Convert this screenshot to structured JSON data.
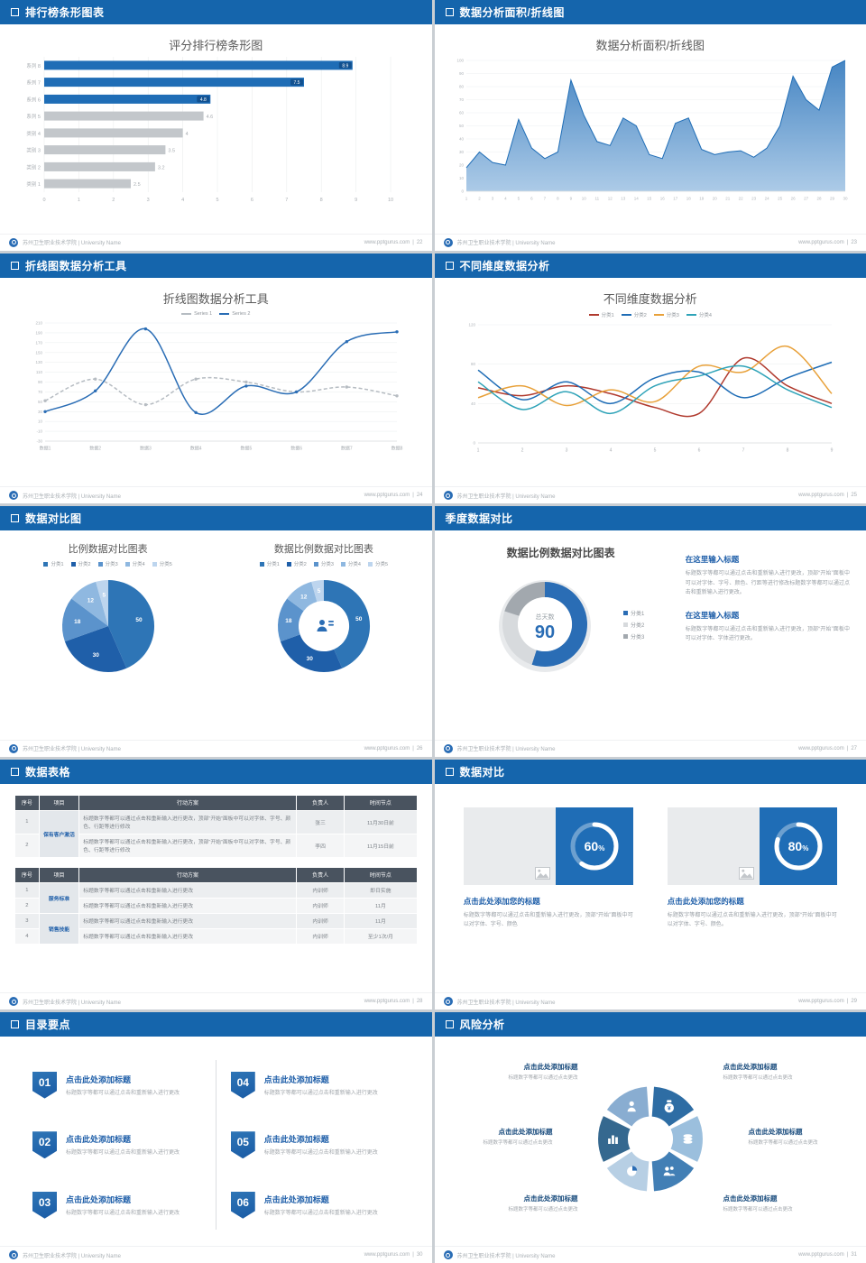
{
  "footer": {
    "left": "苏州卫生职业技术学院 | University Name",
    "site": "www.pptgurus.com",
    "sep": "|"
  },
  "slides": [
    {
      "header": "排行榜条形图表",
      "page": "22",
      "chart": {
        "type": "bar",
        "orientation": "horizontal",
        "title": "评分排行榜条形图",
        "categories": [
          "系列 8",
          "系列 7",
          "系列 6",
          "系列 5",
          "类别 4",
          "类别 3",
          "类别 2",
          "类别 1"
        ],
        "values": [
          8.9,
          7.5,
          4.8,
          4.6,
          4.0,
          3.5,
          3.2,
          2.5
        ],
        "labels": [
          "8.9",
          "7.5",
          "4.8",
          "4.6",
          "4",
          "3.5",
          "3.2",
          "2.5"
        ],
        "highlight_count": 3,
        "xlim": [
          0,
          10
        ],
        "xticks": [
          0,
          1,
          2,
          3,
          4,
          5,
          6,
          7,
          8,
          9,
          10
        ],
        "highlight_color": "#1f6db6",
        "bar_color": "#c3c7cb",
        "tag_color": "#11508f"
      }
    },
    {
      "header": "数据分析面积/折线图",
      "page": "23",
      "chart": {
        "type": "area",
        "title": "数据分析面积/折线图",
        "x": [
          1,
          2,
          3,
          4,
          5,
          6,
          7,
          8,
          9,
          10,
          11,
          12,
          13,
          14,
          15,
          16,
          17,
          18,
          19,
          20,
          21,
          22,
          23,
          24,
          25,
          26,
          27,
          28,
          29,
          30
        ],
        "values": [
          18,
          30,
          22,
          20,
          55,
          33,
          25,
          30,
          85,
          58,
          38,
          35,
          56,
          50,
          28,
          25,
          52,
          56,
          32,
          28,
          30,
          31,
          26,
          33,
          50,
          88,
          70,
          62,
          95,
          100
        ],
        "ylim": [
          0,
          100
        ],
        "ytick_step": 10,
        "line_color": "#1f6db6",
        "fill_top": "#3c7fc0",
        "fill_bottom": "#a8c8e6"
      }
    },
    {
      "header": "折线图数据分析工具",
      "page": "24",
      "chart": {
        "type": "line",
        "title": "折线图数据分析工具",
        "categories": [
          "数据1",
          "数据2",
          "数据3",
          "数据4",
          "数据5",
          "数据6",
          "数据7",
          "数据8"
        ],
        "ylim": [
          -30,
          210
        ],
        "ytick_step": 20,
        "series": [
          {
            "name": "Series 1",
            "color": "#b6bcc2",
            "dashed": true,
            "values": [
              52,
              96,
              44,
              96,
              90,
              70,
              80,
              62
            ]
          },
          {
            "name": "Series 2",
            "color": "#2a6db5",
            "dashed": false,
            "values": [
              30,
              72,
              198,
              28,
              82,
              70,
              172,
              192
            ]
          }
        ]
      }
    },
    {
      "header": "不同维度数据分析",
      "page": "25",
      "chart": {
        "type": "line",
        "title": "不同维度数据分析",
        "x": [
          1,
          2,
          3,
          4,
          5,
          6,
          7,
          8,
          9
        ],
        "ylim": [
          0,
          120
        ],
        "ytick_step": 40,
        "series": [
          {
            "name": "分类1",
            "color": "#b03a2e",
            "values": [
              56,
              48,
              58,
              50,
              36,
              30,
              86,
              58,
              40
            ]
          },
          {
            "name": "分类2",
            "color": "#1f6db6",
            "values": [
              74,
              44,
              62,
              40,
              66,
              72,
              46,
              66,
              82
            ]
          },
          {
            "name": "分类3",
            "color": "#e8a13a",
            "values": [
              46,
              58,
              38,
              54,
              42,
              78,
              72,
              98,
              50
            ]
          },
          {
            "name": "分类4",
            "color": "#2fa3b8",
            "values": [
              62,
              34,
              52,
              30,
              58,
              68,
              78,
              54,
              36
            ]
          }
        ]
      }
    },
    {
      "header": "数据对比图",
      "page": "26",
      "charts": [
        {
          "type": "pie",
          "title": "比例数据对比图表",
          "legend": [
            "分类1",
            "分类2",
            "分类3",
            "分类4",
            "分类5"
          ],
          "values": [
            50,
            30,
            18,
            12,
            5
          ],
          "labels": [
            "50",
            "30",
            "18",
            "12",
            "5"
          ],
          "colors": [
            "#2e75b6",
            "#1f5fa9",
            "#5b93cc",
            "#8fb8e0",
            "#bdd5ee"
          ]
        },
        {
          "type": "donut",
          "title": "数据比例数据对比图表",
          "legend": [
            "分类1",
            "分类2",
            "分类3",
            "分类4",
            "分类5"
          ],
          "values": [
            50,
            30,
            18,
            12,
            5
          ],
          "labels": [
            "50",
            "30",
            "18",
            "12",
            "5"
          ],
          "colors": [
            "#2e75b6",
            "#1f5fa9",
            "#5b93cc",
            "#8fb8e0",
            "#bdd5ee"
          ],
          "center_icon": "presenter-icon"
        }
      ]
    },
    {
      "header": "季度数据对比",
      "page": "27",
      "chart": {
        "type": "donut",
        "title": "数据比例数据对比图表",
        "legend": [
          "分类1",
          "分类2",
          "分类3"
        ],
        "values": [
          55,
          25,
          20
        ],
        "colors": [
          "#2a6db5",
          "#d7dadd",
          "#a2a8ae"
        ],
        "center_label": "总天数",
        "center_value": "90"
      },
      "blocks": [
        {
          "heading": "在这里输入标题",
          "body": "标题数字等都可以通过点击和重新输入进行更改，顶部“开始”面板中可以对字体、字号、颜色、行距等进行修改标题数字等都可以通过点击和重新输入进行更改。"
        },
        {
          "heading": "在这里输入标题",
          "body": "标题数字等都可以通过点击和重新输入进行更改，顶部“开始”面板中可以对字体、字体进行更改。"
        }
      ]
    },
    {
      "header": "数据表格",
      "page": "28",
      "tables": [
        {
          "headers": [
            "序号",
            "项目",
            "行动方案",
            "负责人",
            "时间节点"
          ],
          "groups": [
            {
              "project": "保有客户激活",
              "rows": [
                {
                  "no": "1",
                  "plan": "标题数字等都可以通过点击和重新输入进行更改，顶部“开始”面板中可以对字体、字号、颜色、行距等进行修改",
                  "owner": "张三",
                  "time": "11月30日前"
                },
                {
                  "no": "2",
                  "plan": "标题数字等都可以通过点击和重新输入进行更改，顶部“开始”面板中可以对字体、字号、颜色、行距等进行修改",
                  "owner": "李四",
                  "time": "11月15日前"
                }
              ]
            }
          ]
        },
        {
          "headers": [
            "序号",
            "项目",
            "行动方案",
            "负责人",
            "时间节点"
          ],
          "groups": [
            {
              "project": "服务标准",
              "rows": [
                {
                  "no": "1",
                  "plan": "标题数字等都可以通过点击和重新输入进行更改",
                  "owner": "内训师",
                  "time": "即日实施"
                },
                {
                  "no": "2",
                  "plan": "标题数字等都可以通过点击和重新输入进行更改",
                  "owner": "内训师",
                  "time": "11月"
                }
              ]
            },
            {
              "project": "销售技能",
              "rows": [
                {
                  "no": "3",
                  "plan": "标题数字等都可以通过点击和重新输入进行更改",
                  "owner": "内训师",
                  "time": "11月"
                },
                {
                  "no": "4",
                  "plan": "标题数字等都可以通过点击和重新输入进行更改",
                  "owner": "内训师",
                  "time": "至少1次/月"
                }
              ]
            }
          ]
        }
      ]
    },
    {
      "header": "数据对比",
      "page": "29",
      "cards": [
        {
          "percent": 60,
          "title": "点击此处添加您的标题",
          "body": "标题数字等都可以通过点击和重新输入进行更改，顶部“开始”面板中可以对字体、字号、颜色"
        },
        {
          "percent": 80,
          "title": "点击此处添加您的标题",
          "body": "标题数字等都可以通过点击和重新输入进行更改，顶部“开始”面板中可以对字体、字号、颜色。"
        }
      ],
      "accent": "#1f6db6"
    },
    {
      "header": "目录要点",
      "page": "30",
      "items": [
        {
          "num": "01",
          "title": "点击此处添加标题",
          "sub": "标题数字等都可以通过点击和重新输入进行更改"
        },
        {
          "num": "02",
          "title": "点击此处添加标题",
          "sub": "标题数字等都可以通过点击和重新输入进行更改"
        },
        {
          "num": "03",
          "title": "点击此处添加标题",
          "sub": "标题数字等都可以通过点击和重新输入进行更改"
        },
        {
          "num": "04",
          "title": "点击此处添加标题",
          "sub": "标题数字等都可以通过点击和重新输入进行更改"
        },
        {
          "num": "05",
          "title": "点击此处添加标题",
          "sub": "标题数字等都可以通过点击和重新输入进行更改"
        },
        {
          "num": "06",
          "title": "点击此处添加标题",
          "sub": "标题数字等都可以通过点击和重新输入进行更改"
        }
      ]
    },
    {
      "header": "风险分析",
      "page": "31",
      "diagram": {
        "colors": [
          "#2e6da4",
          "#9bbfdd",
          "#427fb5",
          "#b7cfe4",
          "#35688f",
          "#89add1"
        ],
        "icons": [
          "money-bag-icon",
          "coins-icon",
          "people-icon",
          "pie-chart-icon",
          "bar-chart-icon",
          "person-icon"
        ],
        "labels": [
          {
            "title": "点击此处添加标题",
            "sub": "标题数字等都可以通过点击更改",
            "pos": "top-left"
          },
          {
            "title": "点击此处添加标题",
            "sub": "标题数字等都可以通过点击更改",
            "pos": "top-right"
          },
          {
            "title": "点击此处添加标题",
            "sub": "标题数字等都可以通过点击更改",
            "pos": "mid-left"
          },
          {
            "title": "点击此处添加标题",
            "sub": "标题数字等都可以通过点击更改",
            "pos": "mid-right"
          },
          {
            "title": "点击此处添加标题",
            "sub": "标题数字等都可以通过点击更改",
            "pos": "bottom-left"
          },
          {
            "title": "点击此处添加标题",
            "sub": "标题数字等都可以通过点击更改",
            "pos": "bottom-right"
          }
        ]
      }
    }
  ]
}
